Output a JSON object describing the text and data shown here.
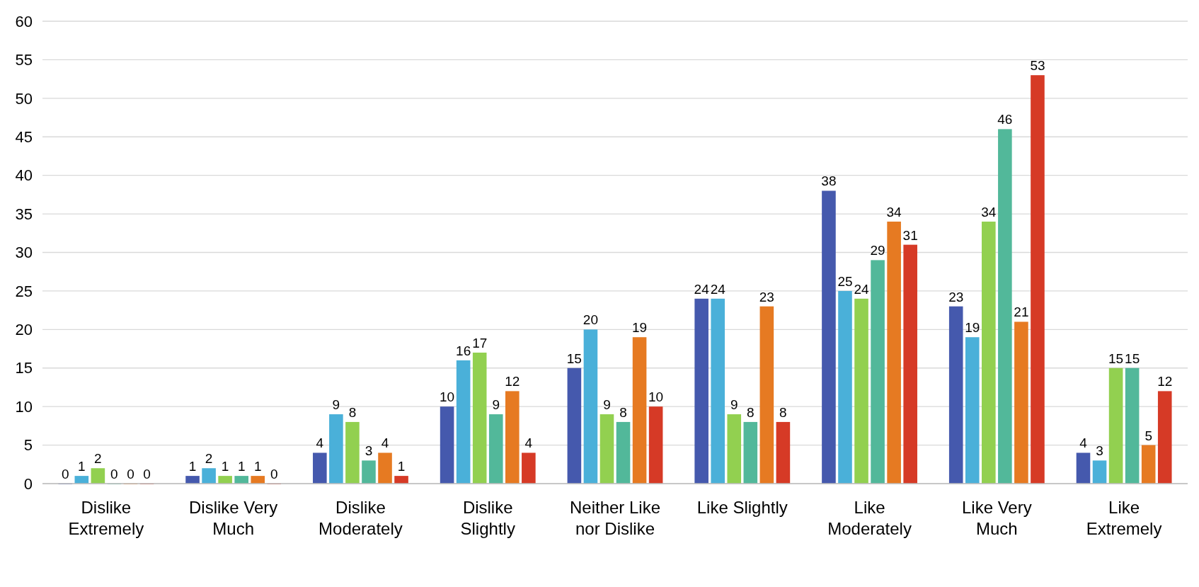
{
  "chart_data": {
    "type": "bar",
    "categories": [
      "Dislike Extremely",
      "Dislike Very Much",
      "Dislike Moderately",
      "Dislike Slightly",
      "Neither Like nor Dislike",
      "Like Slightly",
      "Like Moderately",
      "Like Very Much",
      "Like Extremely"
    ],
    "series": [
      {
        "color": "#4559ad",
        "values": [
          0,
          1,
          4,
          10,
          15,
          24,
          38,
          23,
          4
        ]
      },
      {
        "color": "#4ab0d9",
        "values": [
          1,
          2,
          9,
          16,
          20,
          24,
          25,
          19,
          3
        ]
      },
      {
        "color": "#92d050",
        "values": [
          2,
          1,
          8,
          17,
          9,
          9,
          24,
          34,
          15
        ]
      },
      {
        "color": "#52b89a",
        "values": [
          0,
          1,
          3,
          9,
          8,
          8,
          29,
          46,
          15
        ]
      },
      {
        "color": "#e67a22",
        "values": [
          0,
          1,
          4,
          12,
          19,
          23,
          34,
          21,
          5
        ]
      },
      {
        "color": "#d63a26",
        "values": [
          0,
          0,
          1,
          4,
          10,
          8,
          31,
          53,
          12
        ]
      }
    ],
    "ylim": [
      0,
      60
    ],
    "yticks": [
      0,
      5,
      10,
      15,
      20,
      25,
      30,
      35,
      40,
      45,
      50,
      55,
      60
    ],
    "grid": "y",
    "data_labels": true
  }
}
